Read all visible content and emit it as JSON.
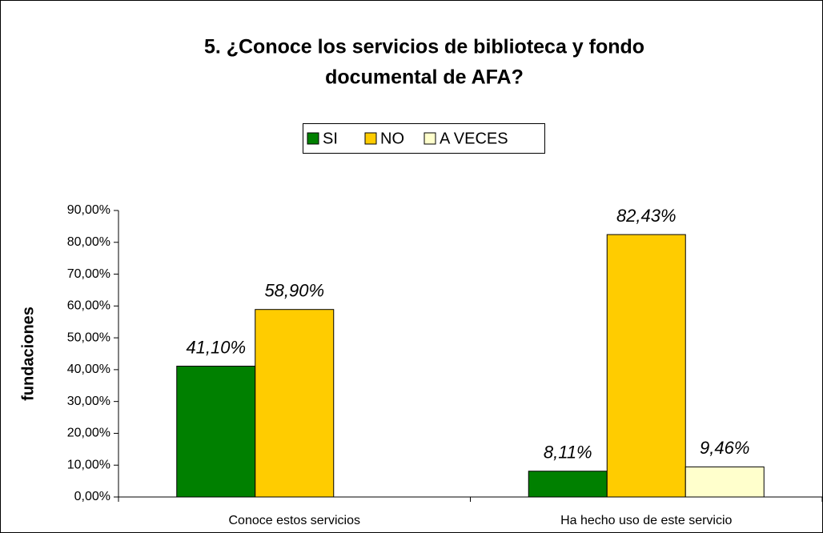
{
  "chart_data": {
    "type": "bar",
    "title": [
      "5. ¿Conoce los servicios de biblioteca y fondo",
      "documental de AFA?"
    ],
    "ylabel": "fundaciones",
    "categories": [
      "Conoce estos servicios",
      "Ha hecho uso de este servicio"
    ],
    "series": [
      {
        "name": "SI",
        "color": "#008000",
        "values": [
          41.1,
          8.11
        ],
        "value_labels": [
          "41,10%",
          "8,11%"
        ]
      },
      {
        "name": "NO",
        "color": "#FFCC00",
        "values": [
          58.9,
          82.43
        ],
        "value_labels": [
          "58,90%",
          "82,43%"
        ]
      },
      {
        "name": "A VECES",
        "color": "#FFFFCC",
        "values": [
          null,
          9.46
        ],
        "value_labels": [
          null,
          "9,46%"
        ]
      }
    ],
    "ylim": [
      0,
      90
    ],
    "yticks": [
      {
        "value": 0,
        "label": "0,00%"
      },
      {
        "value": 10,
        "label": "10,00%"
      },
      {
        "value": 20,
        "label": "20,00%"
      },
      {
        "value": 30,
        "label": "30,00%"
      },
      {
        "value": 40,
        "label": "40,00%"
      },
      {
        "value": 50,
        "label": "50,00%"
      },
      {
        "value": 60,
        "label": "60,00%"
      },
      {
        "value": 70,
        "label": "70,00%"
      },
      {
        "value": 80,
        "label": "80,00%"
      },
      {
        "value": 90,
        "label": "90,00%"
      }
    ],
    "legend": "top"
  }
}
